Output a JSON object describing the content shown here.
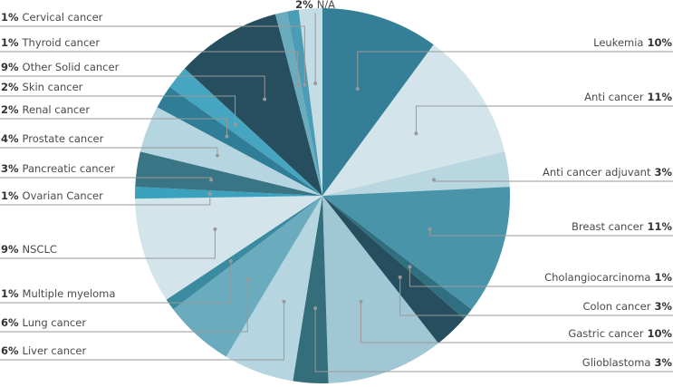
{
  "chart_data": {
    "type": "pie",
    "categories": [
      "Leukemia",
      "Anti cancer",
      "Anti cancer adjuvant",
      "Breast cancer",
      "Cholangiocarcinoma",
      "Colon cancer",
      "Gastric cancer",
      "Glioblastoma",
      "Liver cancer",
      "Lung cancer",
      "Multiple myeloma",
      "NSCLC",
      "Ovarian Cancer",
      "Pancreatic cancer",
      "Prostate cancer",
      "Renal cancer",
      "Skin cancer",
      "Other Solid cancer",
      "Thyroid cancer",
      "Cervical cancer",
      "N/A"
    ],
    "values": [
      10,
      11,
      3,
      11,
      1,
      3,
      10,
      3,
      6,
      6,
      1,
      9,
      1,
      3,
      4,
      2,
      2,
      9,
      1,
      1,
      2
    ],
    "value_labels": [
      "10%",
      "11%",
      "3%",
      "11%",
      "1%",
      "3%",
      "10%",
      "3%",
      "6%",
      "6%",
      "1%",
      "9%",
      "1%",
      "3%",
      "4%",
      "2%",
      "2%",
      "9%",
      "1%",
      "1%",
      "2%"
    ],
    "colors": [
      "#347f97",
      "#d3e5eb",
      "#b8d7e0",
      "#4a94aa",
      "#2f6f80",
      "#264e5e",
      "#a1c7d4",
      "#336e7a",
      "#b5d6e0",
      "#6aabbe",
      "#3a8aa0",
      "#d3e5eb",
      "#3ba2be",
      "#3a7585",
      "#b5d6e0",
      "#2f7d96",
      "#46a5c0",
      "#264e5e",
      "#6aabbe",
      "#4a9db5",
      "#c4dde5"
    ]
  }
}
